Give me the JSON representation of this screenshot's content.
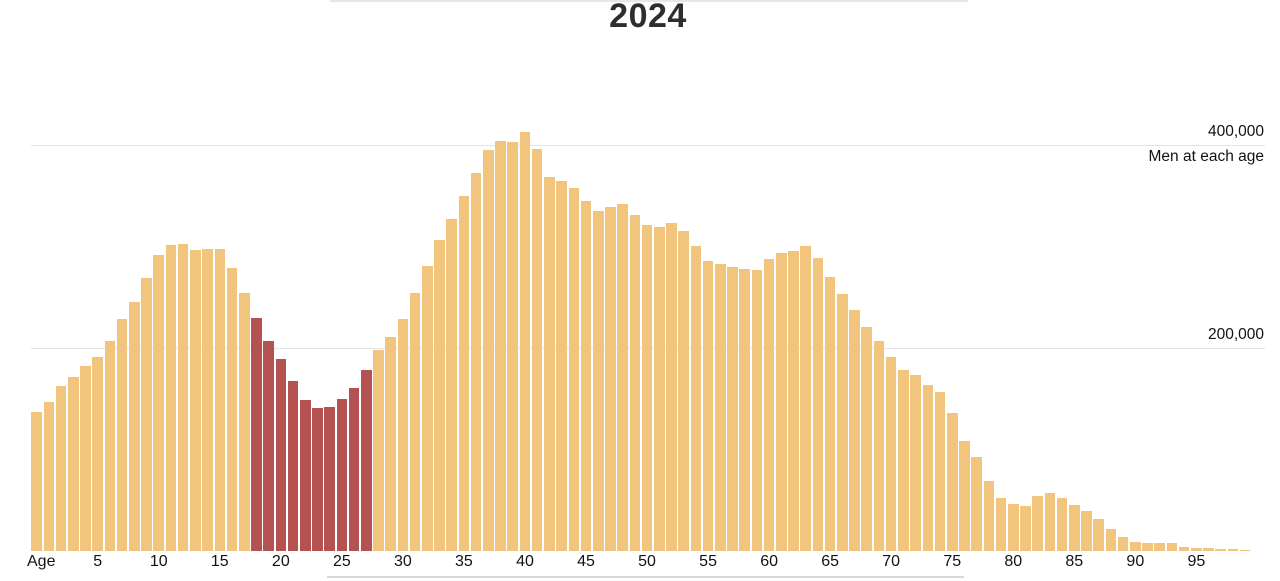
{
  "chart_data": {
    "type": "bar",
    "title": "2024",
    "x_axis": {
      "label": "Age",
      "ticks": [
        5,
        10,
        15,
        20,
        25,
        30,
        35,
        40,
        45,
        50,
        55,
        60,
        65,
        70,
        75,
        80,
        85,
        90,
        95
      ]
    },
    "y_axis": {
      "gridline_values": [
        400000,
        200000
      ],
      "labels": [
        "400,000",
        "200,000"
      ],
      "annotation": "Men at each age",
      "ylim": [
        0,
        420000
      ],
      "grid": true
    },
    "age_start": 0,
    "values": [
      137000,
      147000,
      163000,
      171000,
      182000,
      191000,
      207000,
      229000,
      245000,
      269000,
      292000,
      301000,
      302000,
      297000,
      298000,
      298000,
      279000,
      254000,
      230000,
      207000,
      189000,
      167000,
      149000,
      141000,
      142000,
      150000,
      161000,
      178000,
      198000,
      211000,
      229000,
      254000,
      281000,
      306000,
      327000,
      350000,
      372000,
      395000,
      404000,
      403000,
      413000,
      396000,
      368000,
      365000,
      358000,
      345000,
      335000,
      339000,
      342000,
      331000,
      321000,
      319000,
      323000,
      315000,
      300000,
      286000,
      283000,
      280000,
      278000,
      277000,
      288000,
      294000,
      296000,
      300000,
      289000,
      270000,
      253000,
      237000,
      221000,
      207000,
      191000,
      178000,
      173000,
      164000,
      157000,
      136000,
      108000,
      93000,
      69000,
      52000,
      46000,
      44000,
      54000,
      57000,
      52000,
      45000,
      39000,
      32000,
      22000,
      14000,
      9000,
      8000,
      8000,
      8000,
      4000,
      3000,
      3000,
      2000,
      2000,
      1000
    ],
    "highlight_age_range": [
      18,
      27
    ],
    "colors": {
      "bar": "#F2C57E",
      "highlight_bar": "#B35250",
      "gridline": "#E4E4E4"
    },
    "legend_position": "none"
  }
}
